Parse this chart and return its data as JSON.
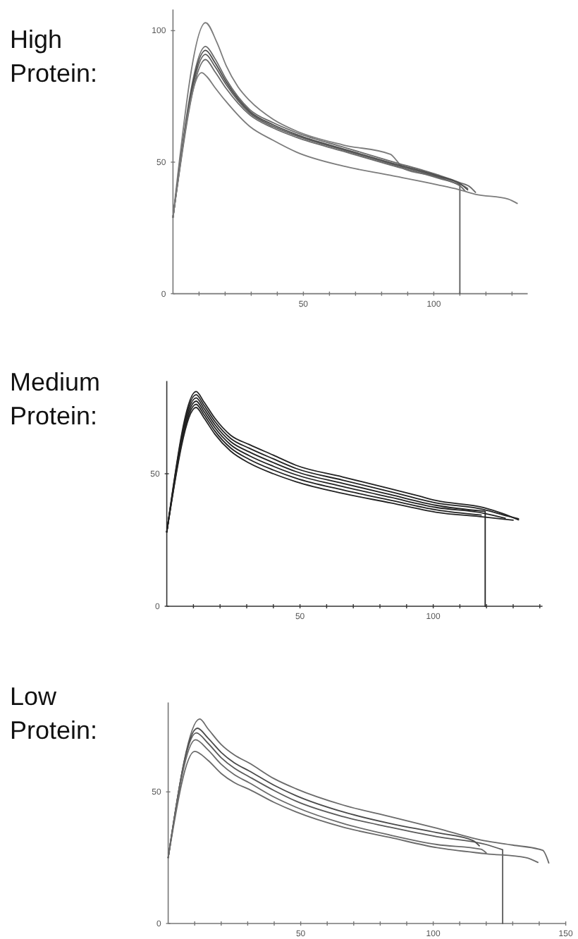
{
  "chart_data": [
    {
      "type": "line",
      "title": "High Protein:",
      "xlim": [
        0,
        136
      ],
      "ylim": [
        0,
        108
      ],
      "xticks": [
        {
          "value": 10,
          "label": null
        },
        {
          "value": 20,
          "label": null
        },
        {
          "value": 30,
          "label": null
        },
        {
          "value": 40,
          "label": null
        },
        50,
        {
          "value": 60,
          "label": null
        },
        {
          "value": 70,
          "label": null
        },
        {
          "value": 80,
          "label": null
        },
        {
          "value": 90,
          "label": null
        },
        100,
        {
          "value": 110,
          "label": null
        },
        {
          "value": 120,
          "label": null
        },
        {
          "value": 130,
          "label": null
        }
      ],
      "yticks": [
        0,
        50,
        100
      ],
      "series": [
        {
          "color": "#7c7c7c",
          "x": [
            0,
            12.5,
            16.8,
            20.4,
            24.9,
            29.4,
            38.4,
            47.4,
            65.4,
            83.4,
            86,
            88.5,
            100,
            110,
            113
          ],
          "values": [
            29,
            103,
            95.6,
            86.7,
            78.7,
            73.4,
            66.3,
            61.8,
            56.5,
            53,
            50.3,
            47.5,
            44.8,
            41.8,
            40
          ]
        },
        {
          "color": "#6a6a6a",
          "x": [
            0,
            12.5,
            16,
            20.4,
            29.4,
            38.4,
            47.4,
            65.4,
            83.4,
            101.4,
            110,
            114,
            116
          ],
          "values": [
            29,
            94,
            89.5,
            81.5,
            70,
            65,
            61.2,
            55.7,
            50.4,
            45.2,
            42.2,
            40.5,
            38.5
          ]
        },
        {
          "color": "#4a4a4a",
          "x": [
            0,
            12.5,
            16,
            20.4,
            29.4,
            38.4,
            47.4,
            65.4,
            83.4,
            101.4,
            110,
            113
          ],
          "values": [
            29,
            92.5,
            88,
            80.5,
            69.3,
            64.2,
            60.5,
            55,
            49.8,
            44.8,
            41.8,
            39.5
          ]
        },
        {
          "color": "#5a5a5a",
          "x": [
            0,
            12.5,
            16,
            20.4,
            29.4,
            38.4,
            47.4,
            65.4,
            83.4,
            101.4,
            110,
            110
          ],
          "values": [
            29,
            91,
            86.5,
            79.5,
            68.7,
            63.6,
            60,
            54.6,
            49.4,
            44.4,
            41.4,
            0
          ]
        },
        {
          "color": "#6a6a6a",
          "x": [
            0,
            12.5,
            16,
            20.4,
            29.4,
            38.4,
            47.4,
            65.4,
            83.4,
            101.4,
            110,
            112
          ],
          "values": [
            29,
            89,
            84.5,
            78,
            68,
            63,
            59.4,
            54.1,
            48.9,
            44,
            41,
            39
          ]
        },
        {
          "color": "#7c7c7c",
          "x": [
            0,
            11,
            13,
            16,
            20.4,
            29.4,
            38.4,
            47.4,
            65.4,
            83.4,
            101.4,
            109.5,
            115.9,
            128.5,
            132
          ],
          "values": [
            29,
            84,
            82.5,
            78.5,
            73,
            63.6,
            58.3,
            53.8,
            48.5,
            45,
            41.4,
            39.6,
            37.8,
            36,
            34.3
          ]
        }
      ]
    },
    {
      "type": "line",
      "title": "Medium Protein:",
      "xlim": [
        0,
        141
      ],
      "ylim": [
        0,
        85
      ],
      "xticks": [
        {
          "value": 10,
          "label": null
        },
        {
          "value": 20,
          "label": null
        },
        {
          "value": 30,
          "label": null
        },
        {
          "value": 40,
          "label": null
        },
        50,
        {
          "value": 60,
          "label": null
        },
        {
          "value": 70,
          "label": null
        },
        {
          "value": 80,
          "label": null
        },
        {
          "value": 90,
          "label": null
        },
        100,
        {
          "value": 110,
          "label": null
        },
        {
          "value": 120,
          "label": null
        },
        {
          "value": 130,
          "label": null
        },
        {
          "value": 140,
          "label": null
        }
      ],
      "yticks": [
        0,
        50
      ],
      "series": [
        {
          "color": "#222222",
          "x": [
            0,
            11,
            14,
            18,
            24,
            31,
            40,
            48.5,
            66,
            84,
            95,
            101,
            119,
            126,
            132
          ],
          "values": [
            28,
            81,
            77,
            71,
            64.5,
            61,
            57,
            53.2,
            48.8,
            44.3,
            41.5,
            39.9,
            37.2,
            35,
            32.6
          ]
        },
        {
          "color": "#222222",
          "x": [
            0,
            11,
            14,
            18,
            24,
            31,
            40,
            48.5,
            66,
            84,
            101,
            119,
            128,
            132
          ],
          "values": [
            28,
            79.8,
            75.8,
            69.8,
            63.3,
            59.6,
            55.6,
            52,
            47.6,
            43.2,
            39,
            36.5,
            34,
            33
          ]
        },
        {
          "color": "#222222",
          "x": [
            0,
            11,
            14,
            18,
            24,
            31,
            40,
            48.5,
            66,
            84,
            101,
            119.5,
            119.5
          ],
          "values": [
            28,
            78.6,
            74.6,
            68.6,
            62.1,
            58.2,
            54.2,
            50.8,
            46.4,
            42.1,
            38.1,
            35.8,
            0
          ]
        },
        {
          "color": "#222222",
          "x": [
            0,
            11,
            14,
            18,
            24,
            31,
            40,
            48.5,
            66,
            84,
            101,
            119,
            127
          ],
          "values": [
            28,
            77.4,
            73.4,
            67.4,
            60.9,
            56.8,
            52.8,
            49.6,
            45.2,
            41.1,
            37.3,
            35.1,
            33.2
          ]
        },
        {
          "color": "#222222",
          "x": [
            0,
            11,
            14,
            18,
            24,
            31,
            40,
            48.5,
            66,
            84,
            101,
            118
          ],
          "values": [
            28,
            76.2,
            72.2,
            66.2,
            59.7,
            55.4,
            51.4,
            48.3,
            43.9,
            40,
            36.4,
            34.4
          ]
        },
        {
          "color": "#222222",
          "x": [
            0,
            11,
            14,
            18,
            24,
            31,
            40,
            48.5,
            66,
            84,
            101,
            119,
            125,
            130
          ],
          "values": [
            28,
            75,
            71,
            65,
            58.5,
            54,
            50,
            47,
            42.6,
            39,
            35.5,
            33.7,
            33,
            32.5
          ]
        }
      ]
    },
    {
      "type": "line",
      "title": "Low Protein:",
      "xlim": [
        0,
        150
      ],
      "ylim": [
        0,
        84
      ],
      "xticks": [
        {
          "value": 10,
          "label": null
        },
        {
          "value": 20,
          "label": null
        },
        {
          "value": 30,
          "label": null
        },
        {
          "value": 40,
          "label": null
        },
        50,
        {
          "value": 60,
          "label": null
        },
        {
          "value": 70,
          "label": null
        },
        {
          "value": 80,
          "label": null
        },
        {
          "value": 90,
          "label": null
        },
        100,
        {
          "value": 110,
          "label": null
        },
        {
          "value": 120,
          "label": null
        },
        {
          "value": 130,
          "label": null
        },
        {
          "value": 140,
          "label": null
        },
        150
      ],
      "yticks": [
        0,
        50
      ],
      "series": [
        {
          "color": "#6a6a6a",
          "x": [
            0,
            11.9,
            15,
            20,
            25,
            30.5,
            40,
            48.2,
            66,
            83.7,
            101.4,
            119,
            130,
            141.3,
            143.6
          ],
          "values": [
            25,
            77.7,
            74,
            68,
            64,
            61,
            55,
            51.2,
            45,
            40.6,
            36.2,
            31.5,
            29.8,
            27.8,
            23
          ]
        },
        {
          "color": "#4a4a4a",
          "x": [
            0,
            11,
            15,
            20,
            25,
            30.5,
            40,
            48.2,
            66,
            83.7,
            101.4,
            115,
            117.4
          ],
          "values": [
            25,
            74.2,
            70.5,
            65,
            61,
            58,
            52.5,
            48.6,
            42.4,
            38,
            34.5,
            31.5,
            29.5
          ]
        },
        {
          "color": "#5a5a5a",
          "x": [
            0,
            10.6,
            15,
            20,
            25,
            30.5,
            40,
            48.2,
            66,
            83.7,
            101.4,
            120,
            126.2,
            126.2
          ],
          "values": [
            25,
            72.4,
            68.5,
            63,
            59,
            55.8,
            50.5,
            46.5,
            40.6,
            36.6,
            33,
            30,
            28,
            0
          ]
        },
        {
          "color": "#6a6a6a",
          "x": [
            0,
            10.3,
            15,
            20,
            25,
            30.5,
            40,
            48.2,
            66,
            83.7,
            101.4,
            118,
            120
          ],
          "values": [
            25,
            69.8,
            66,
            60.5,
            56.5,
            53.5,
            48,
            44.2,
            38,
            33.6,
            30,
            28.2,
            26.8
          ]
        },
        {
          "color": "#6a6a6a",
          "x": [
            0,
            10,
            15,
            20,
            25,
            30.5,
            40,
            48.2,
            66,
            83.7,
            101.4,
            120,
            135,
            139.5
          ],
          "values": [
            25,
            65.4,
            62,
            57,
            53.5,
            51,
            46,
            42.4,
            36.6,
            32.7,
            28.8,
            26.5,
            25,
            23.2
          ]
        }
      ]
    }
  ]
}
